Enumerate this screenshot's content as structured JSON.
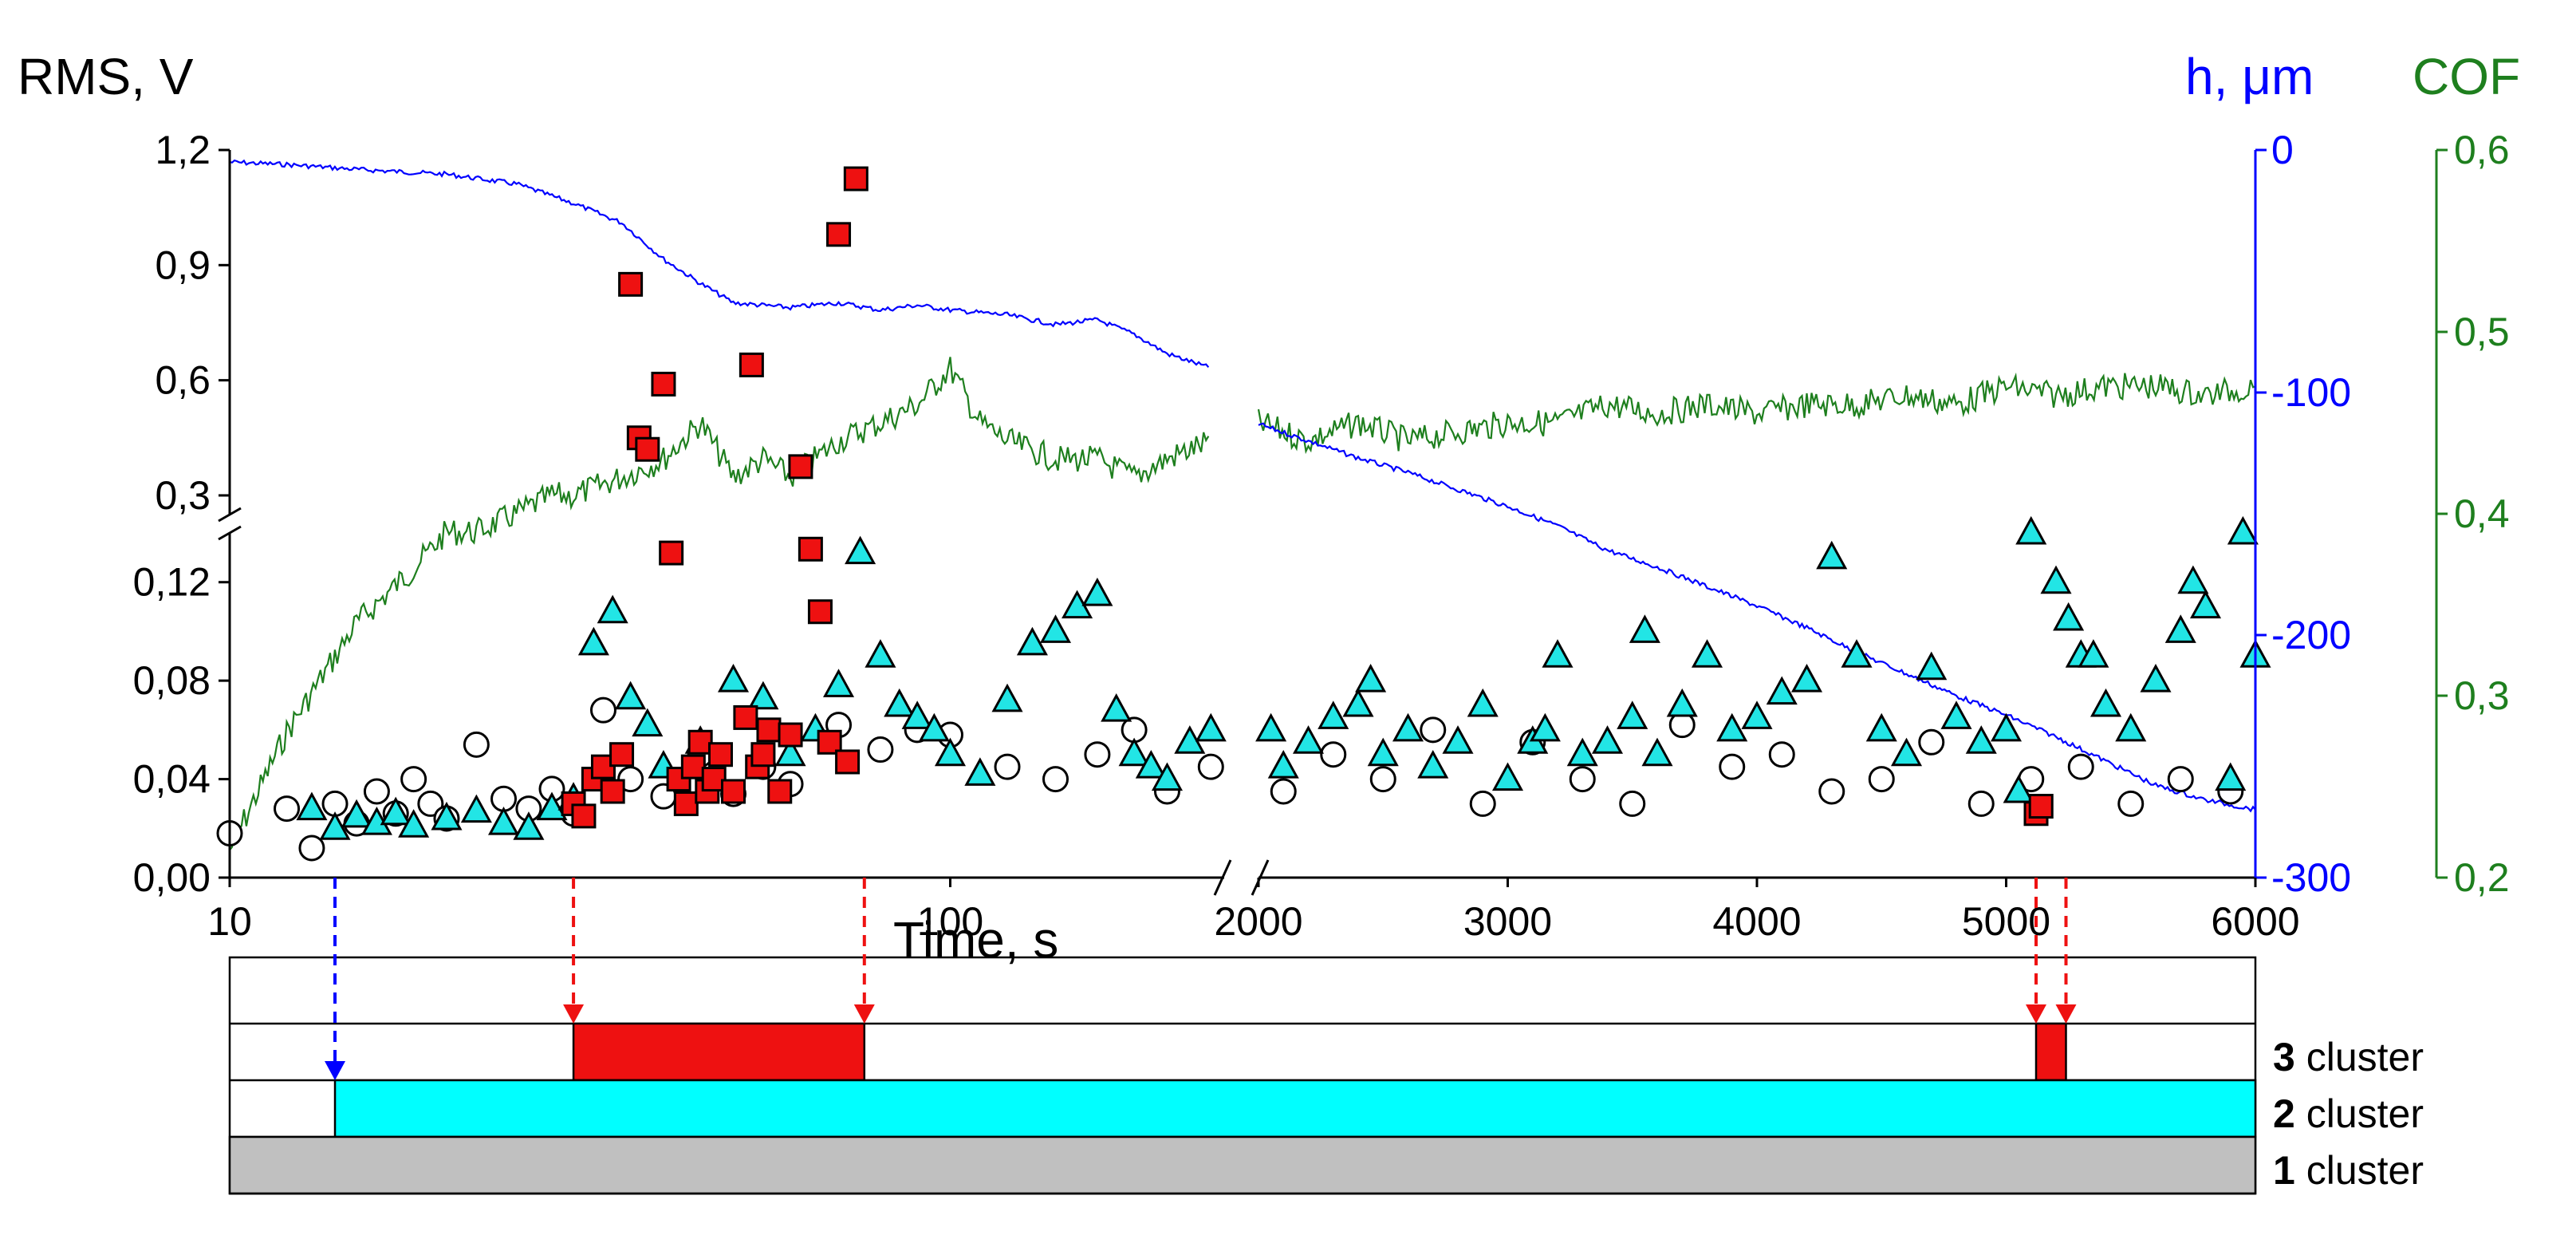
{
  "chart_data": {
    "type": "scatter",
    "title": "",
    "xlabel": "Time, s",
    "axes": {
      "left": {
        "label": "RMS, V",
        "segments": [
          {
            "range": [
              0,
              0.14
            ],
            "ticks": [
              "0,00",
              "0,04",
              "0,08",
              "0,12"
            ],
            "tick_values": [
              0,
              0.04,
              0.08,
              0.12
            ]
          },
          {
            "range": [
              0.25,
              1.2
            ],
            "ticks": [
              "0,3",
              "0,6",
              "0,9",
              "1,2"
            ],
            "tick_values": [
              0.3,
              0.6,
              0.9,
              1.2
            ]
          }
        ]
      },
      "right_h": {
        "label": "h, μm",
        "range": [
          -300,
          0
        ],
        "ticks": [
          "0",
          "-100",
          "-200",
          "-300"
        ],
        "tick_values": [
          0,
          -100,
          -200,
          -300
        ],
        "color": "#0000ff"
      },
      "right_cof": {
        "label": "COF",
        "range": [
          0.2,
          0.6
        ],
        "ticks": [
          "0,6",
          "0,5",
          "0,4",
          "0,3",
          "0,2"
        ],
        "tick_values": [
          0.6,
          0.5,
          0.4,
          0.3,
          0.2
        ],
        "color": "#1e7f1e"
      },
      "x": {
        "segments": [
          {
            "scale": "log",
            "range": [
              10,
              240
            ]
          },
          {
            "scale": "linear",
            "range": [
              2000,
              6000
            ]
          }
        ],
        "ticks": [
          "10",
          "100",
          "2000",
          "3000",
          "4000",
          "5000",
          "6000"
        ],
        "tick_values": [
          10,
          100,
          2000,
          3000,
          4000,
          5000,
          6000
        ]
      }
    },
    "series": [
      {
        "name": "Cluster 1 (circles)",
        "marker": "circle",
        "color": "#ffffff",
        "stroke": "#000000",
        "x": [
          10,
          12,
          13,
          14,
          15,
          16,
          17,
          18,
          19,
          20,
          22,
          24,
          26,
          28,
          30,
          33,
          36,
          40,
          45,
          50,
          55,
          60,
          70,
          80,
          90,
          100,
          120,
          140,
          160,
          180,
          200,
          230,
          2100,
          2300,
          2500,
          2700,
          2900,
          3100,
          3300,
          3500,
          3700,
          3900,
          4100,
          4300,
          4500,
          4700,
          4900,
          5100,
          5300,
          5500,
          5700,
          5900
        ],
        "y": [
          0.018,
          0.028,
          0.012,
          0.03,
          0.022,
          0.035,
          0.026,
          0.04,
          0.03,
          0.024,
          0.054,
          0.032,
          0.028,
          0.036,
          0.026,
          0.068,
          0.04,
          0.033,
          0.05,
          0.034,
          0.045,
          0.038,
          0.062,
          0.052,
          0.06,
          0.058,
          0.045,
          0.04,
          0.05,
          0.06,
          0.035,
          0.045,
          0.035,
          0.05,
          0.04,
          0.06,
          0.03,
          0.055,
          0.04,
          0.03,
          0.062,
          0.045,
          0.05,
          0.035,
          0.04,
          0.055,
          0.03,
          0.04,
          0.045,
          0.03,
          0.04,
          0.035
        ]
      },
      {
        "name": "Cluster 2 (triangles)",
        "marker": "triangle",
        "color": "#22e5e5",
        "stroke": "#000000",
        "x": [
          13,
          14,
          15,
          16,
          17,
          18,
          20,
          22,
          24,
          26,
          28,
          30,
          32,
          34,
          36,
          38,
          40,
          45,
          50,
          55,
          60,
          65,
          70,
          75,
          80,
          85,
          90,
          95,
          100,
          110,
          120,
          130,
          140,
          150,
          160,
          170,
          180,
          190,
          200,
          215,
          230,
          2050,
          2100,
          2200,
          2300,
          2400,
          2450,
          2500,
          2600,
          2700,
          2800,
          2900,
          3000,
          3100,
          3150,
          3200,
          3300,
          3400,
          3500,
          3550,
          3600,
          3700,
          3800,
          3900,
          4000,
          4100,
          4200,
          4300,
          4400,
          4500,
          4600,
          4700,
          4800,
          4900,
          5000,
          5050,
          5100,
          5200,
          5250,
          5300,
          5350,
          5400,
          5500,
          5600,
          5700,
          5750,
          5800,
          5900,
          5950,
          6000
        ],
        "y": [
          0.028,
          0.02,
          0.025,
          0.022,
          0.026,
          0.021,
          0.024,
          0.027,
          0.022,
          0.02,
          0.028,
          0.032,
          0.095,
          0.108,
          0.073,
          0.062,
          0.045,
          0.055,
          0.08,
          0.073,
          0.05,
          0.06,
          0.078,
          0.132,
          0.09,
          0.07,
          0.065,
          0.06,
          0.05,
          0.042,
          0.072,
          0.095,
          0.1,
          0.11,
          0.115,
          0.068,
          0.05,
          0.045,
          0.04,
          0.055,
          0.06,
          0.06,
          0.045,
          0.055,
          0.065,
          0.07,
          0.08,
          0.05,
          0.06,
          0.045,
          0.055,
          0.07,
          0.04,
          0.055,
          0.06,
          0.09,
          0.05,
          0.055,
          0.065,
          0.1,
          0.05,
          0.07,
          0.09,
          0.06,
          0.065,
          0.075,
          0.08,
          0.13,
          0.09,
          0.06,
          0.05,
          0.085,
          0.065,
          0.055,
          0.06,
          0.035,
          0.14,
          0.12,
          0.105,
          0.09,
          0.09,
          0.07,
          0.06,
          0.08,
          0.1,
          0.12,
          0.11,
          0.04,
          0.14,
          0.09
        ]
      },
      {
        "name": "Cluster 3 (squares)",
        "marker": "square",
        "color": "#ee1111",
        "stroke": "#000000",
        "x": [
          30,
          31,
          32,
          33,
          34,
          35,
          36,
          37,
          38,
          40,
          41,
          42,
          43,
          44,
          45,
          46,
          47,
          48,
          50,
          52,
          53,
          54,
          55,
          56,
          58,
          60,
          62,
          64,
          66,
          68,
          70,
          72,
          74,
          5120,
          5140
        ],
        "y": [
          0.03,
          0.025,
          0.04,
          0.045,
          0.035,
          0.05,
          0.85,
          0.45,
          0.42,
          0.59,
          0.15,
          0.04,
          0.03,
          0.045,
          0.055,
          0.035,
          0.04,
          0.05,
          0.035,
          0.065,
          0.64,
          0.045,
          0.05,
          0.06,
          0.035,
          0.058,
          0.375,
          0.16,
          0.108,
          0.055,
          0.98,
          0.047,
          1.125,
          0.026,
          0.029
        ]
      }
    ],
    "lines": [
      {
        "name": "h, μm (wear depth)",
        "color": "#0000ff",
        "axis": "right_h",
        "x": [
          10,
          12,
          15,
          20,
          25,
          30,
          35,
          40,
          45,
          50,
          60,
          70,
          80,
          90,
          100,
          120,
          140,
          160,
          180,
          200,
          230,
          2000,
          2200,
          2400,
          2600,
          2800,
          3000,
          3200,
          3400,
          3600,
          3800,
          4000,
          4200,
          4400,
          4600,
          4800,
          5000,
          5200,
          5400,
          5600,
          5800,
          6000
        ],
        "y": [
          -5,
          -6,
          -8,
          -10,
          -14,
          -22,
          -30,
          -45,
          -55,
          -63,
          -65,
          -63,
          -66,
          -64,
          -66,
          -68,
          -72,
          -70,
          -76,
          -84,
          -90,
          -113,
          -120,
          -127,
          -133,
          -140,
          -147,
          -155,
          -165,
          -172,
          -180,
          -188,
          -197,
          -207,
          -216,
          -225,
          -233,
          -242,
          -252,
          -262,
          -268,
          -272
        ]
      },
      {
        "name": "COF",
        "color": "#1e7f1e",
        "axis": "right_cof",
        "x": [
          10,
          12,
          15,
          18,
          20,
          22,
          25,
          28,
          30,
          35,
          40,
          45,
          50,
          55,
          60,
          70,
          80,
          90,
          100,
          110,
          120,
          140,
          160,
          180,
          200,
          230,
          2000,
          2200,
          2400,
          2600,
          2800,
          3000,
          3200,
          3400,
          3600,
          3800,
          4000,
          4200,
          4400,
          4600,
          4800,
          5000,
          5200,
          5400,
          5600,
          5800,
          6000
        ],
        "y": [
          0.215,
          0.28,
          0.34,
          0.37,
          0.39,
          0.39,
          0.4,
          0.41,
          0.41,
          0.42,
          0.43,
          0.45,
          0.42,
          0.43,
          0.42,
          0.44,
          0.45,
          0.46,
          0.48,
          0.45,
          0.44,
          0.43,
          0.43,
          0.42,
          0.43,
          0.44,
          0.45,
          0.44,
          0.45,
          0.44,
          0.445,
          0.45,
          0.45,
          0.46,
          0.455,
          0.46,
          0.455,
          0.46,
          0.46,
          0.465,
          0.46,
          0.47,
          0.465,
          0.47,
          0.47,
          0.465,
          0.47
        ]
      }
    ],
    "markers": [
      {
        "name": "cluster-2-onset",
        "color": "#0000ff",
        "x": 14
      },
      {
        "name": "cluster-3-start-a",
        "color": "#ee1111",
        "x": 30
      },
      {
        "name": "cluster-3-end-a",
        "color": "#ee1111",
        "x": 76
      },
      {
        "name": "cluster-3-start-b",
        "color": "#ee1111",
        "x": 5120
      },
      {
        "name": "cluster-3-end-b",
        "color": "#ee1111",
        "x": 5240
      }
    ],
    "clusters": [
      {
        "number": "3",
        "label": " cluster",
        "color": "#ee1111",
        "intervals": [
          [
            30,
            76
          ],
          [
            5120,
            5240
          ]
        ]
      },
      {
        "number": "2",
        "label": " cluster",
        "color": "#00ffff",
        "intervals": [
          [
            14,
            6000
          ]
        ]
      },
      {
        "number": "1",
        "label": " cluster",
        "color": "#c0c0c0",
        "intervals": [
          [
            10,
            6000
          ]
        ]
      }
    ]
  }
}
